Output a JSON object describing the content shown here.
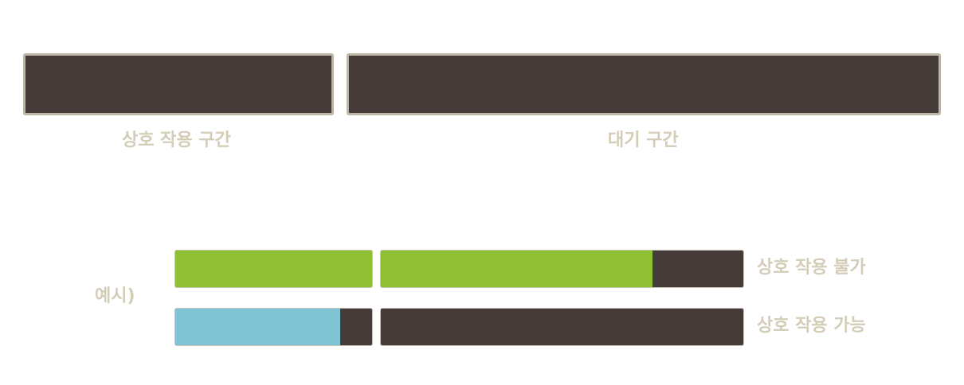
{
  "legend": {
    "interaction_label": "상호 작용 구간",
    "waiting_label": "대기 구간"
  },
  "example": {
    "label": "예시)",
    "rows": [
      {
        "status": "상호 작용 불가",
        "interaction_fill": 1.0,
        "waiting_fill": 0.75,
        "fill_color": "#91bf33"
      },
      {
        "status": "상호 작용 가능",
        "interaction_fill": 0.84,
        "waiting_fill": 0.0,
        "fill_color": "#7fc3d5"
      }
    ]
  },
  "colors": {
    "bar_bg": "#453c39",
    "bar_border": "#bdb6a7",
    "label": "#d3cdb8"
  }
}
